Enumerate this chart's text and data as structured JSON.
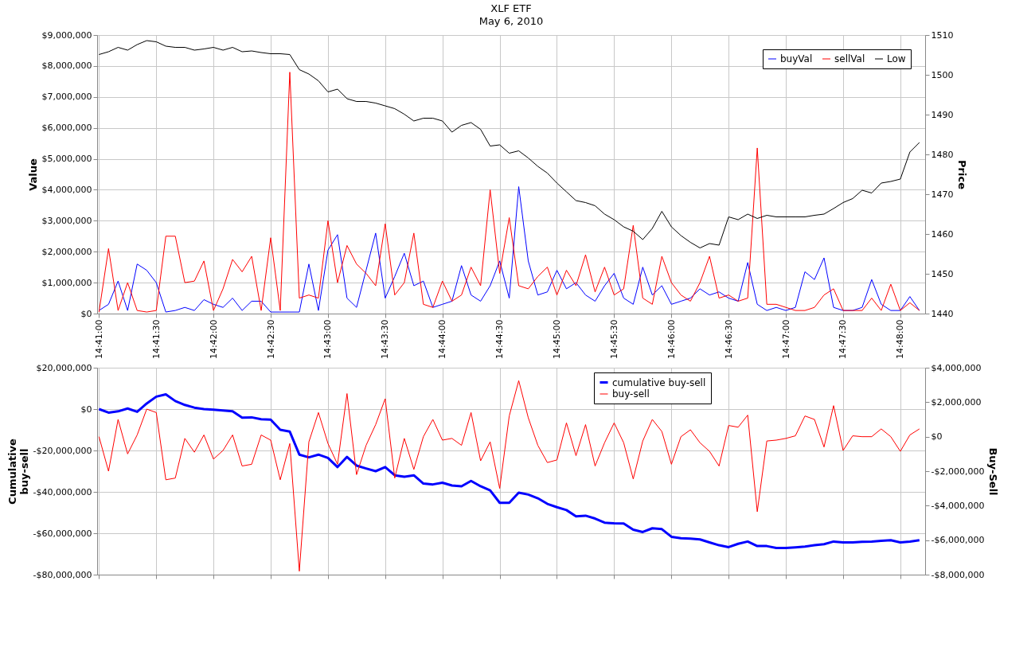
{
  "chart_data": [
    {
      "type": "line",
      "title": "XLF ETF",
      "subtitle": "May 6, 2010",
      "ylabel": "Value",
      "y2label": "Price",
      "legend": "top right",
      "grid": true,
      "x": [
        14.68333,
        14.68472,
        14.68611,
        14.6875,
        14.68889,
        14.69028,
        14.69167,
        14.69306,
        14.69444,
        14.69583,
        14.69722,
        14.69861,
        14.7,
        14.70139,
        14.70278,
        14.70417,
        14.70556,
        14.70694,
        14.70833,
        14.70972,
        14.71111,
        14.7125,
        14.71389,
        14.71528,
        14.71667,
        14.71806,
        14.71944,
        14.72083,
        14.72222,
        14.72361,
        14.725,
        14.72639,
        14.72778,
        14.72917,
        14.73056,
        14.73194,
        14.73333,
        14.73472,
        14.73611,
        14.7375,
        14.73889,
        14.74028,
        14.74167,
        14.74306,
        14.74444,
        14.74583,
        14.74722,
        14.74861,
        14.75,
        14.75139,
        14.75278,
        14.75417,
        14.75556,
        14.75694,
        14.75833,
        14.75972,
        14.76111,
        14.7625,
        14.76389,
        14.76528,
        14.76667,
        14.76806,
        14.76944,
        14.77083,
        14.77222,
        14.77361,
        14.775,
        14.77639,
        14.77778,
        14.77917,
        14.78056,
        14.78194,
        14.78333,
        14.78472,
        14.78611,
        14.7875,
        14.78889,
        14.79028,
        14.79167,
        14.79306,
        14.79444,
        14.79583,
        14.79722,
        14.79861,
        14.8,
        14.80139,
        14.80278
      ],
      "xlim": [
        14.68306,
        14.80361
      ],
      "xticks": [
        {
          "value": 14.68333,
          "label": "14:41:00"
        },
        {
          "value": 14.69167,
          "label": "14:41:30"
        },
        {
          "value": 14.7,
          "label": "14:42:00"
        },
        {
          "value": 14.70833,
          "label": "14:42:30"
        },
        {
          "value": 14.71667,
          "label": "14:43:00"
        },
        {
          "value": 14.725,
          "label": "14:43:30"
        },
        {
          "value": 14.73333,
          "label": "14:44:00"
        },
        {
          "value": 14.74167,
          "label": "14:44:30"
        },
        {
          "value": 14.75,
          "label": "14:45:00"
        },
        {
          "value": 14.75833,
          "label": "14:45:30"
        },
        {
          "value": 14.76667,
          "label": "14:46:00"
        },
        {
          "value": 14.775,
          "label": "14:46:30"
        },
        {
          "value": 14.78333,
          "label": "14:47:00"
        },
        {
          "value": 14.79167,
          "label": "14:47:30"
        },
        {
          "value": 14.8,
          "label": "14:48:00"
        }
      ],
      "ylim": [
        0,
        9000000
      ],
      "yticks": [
        {
          "value": 0,
          "label": "$0"
        },
        {
          "value": 1000000,
          "label": "$1,000,000"
        },
        {
          "value": 2000000,
          "label": "$2,000,000"
        },
        {
          "value": 3000000,
          "label": "$3,000,000"
        },
        {
          "value": 4000000,
          "label": "$4,000,000"
        },
        {
          "value": 5000000,
          "label": "$5,000,000"
        },
        {
          "value": 6000000,
          "label": "$6,000,000"
        },
        {
          "value": 7000000,
          "label": "$7,000,000"
        },
        {
          "value": 8000000,
          "label": "$8,000,000"
        },
        {
          "value": 9000000,
          "label": "$9,000,000"
        }
      ],
      "y2lim": [
        1440,
        1510
      ],
      "y2ticks": [
        1440,
        1450,
        1460,
        1470,
        1480,
        1490,
        1500,
        1510
      ],
      "series": [
        {
          "name": "buyVal",
          "color": "#0000ff",
          "values": [
            100000,
            300000,
            1050000,
            100000,
            1600000,
            1400000,
            1000000,
            50000,
            100000,
            200000,
            100000,
            450000,
            300000,
            200000,
            500000,
            100000,
            400000,
            400000,
            50000,
            50000,
            50000,
            50000,
            1600000,
            100000,
            2050000,
            2550000,
            500000,
            200000,
            1400000,
            2600000,
            500000,
            1200000,
            1950000,
            900000,
            1050000,
            200000,
            300000,
            400000,
            1550000,
            600000,
            400000,
            900000,
            1700000,
            500000,
            4100000,
            1700000,
            600000,
            700000,
            1400000,
            800000,
            1000000,
            600000,
            400000,
            900000,
            1300000,
            500000,
            300000,
            1500000,
            600000,
            900000,
            300000,
            400000,
            500000,
            800000,
            600000,
            700000,
            500000,
            400000,
            1650000,
            300000,
            100000,
            200000,
            100000,
            200000,
            1350000,
            1100000,
            1800000,
            200000,
            100000,
            100000,
            200000,
            1100000,
            300000,
            100000,
            100000,
            550000,
            100000
          ]
        },
        {
          "name": "sellVal",
          "color": "#ff0000",
          "values": [
            50000,
            2100000,
            100000,
            1000000,
            100000,
            50000,
            100000,
            2500000,
            2500000,
            1000000,
            1050000,
            1700000,
            100000,
            800000,
            1750000,
            1350000,
            1850000,
            100000,
            2450000,
            100000,
            7800000,
            500000,
            600000,
            500000,
            3000000,
            1000000,
            2200000,
            1600000,
            1300000,
            900000,
            2900000,
            600000,
            1000000,
            2600000,
            300000,
            200000,
            1050000,
            400000,
            600000,
            1500000,
            900000,
            4000000,
            1300000,
            3100000,
            900000,
            800000,
            1200000,
            1500000,
            600000,
            1400000,
            900000,
            1900000,
            700000,
            1500000,
            600000,
            800000,
            2850000,
            500000,
            300000,
            1850000,
            1000000,
            600000,
            400000,
            1000000,
            1850000,
            500000,
            600000,
            400000,
            500000,
            5350000,
            300000,
            300000,
            200000,
            100000,
            100000,
            200000,
            600000,
            800000,
            100000,
            100000,
            100000,
            500000,
            100000,
            950000,
            100000,
            350000,
            100000
          ]
        },
        {
          "name": "Low",
          "color": "#000000",
          "axis": "y2",
          "values": [
            1505.1,
            1505.8,
            1506.9,
            1506.2,
            1507.6,
            1508.6,
            1508.3,
            1507.2,
            1506.9,
            1506.9,
            1506.2,
            1506.5,
            1506.9,
            1506.2,
            1506.9,
            1505.8,
            1506.0,
            1505.6,
            1505.3,
            1505.3,
            1505.1,
            1501.3,
            1500.2,
            1498.5,
            1495.7,
            1496.4,
            1494.0,
            1493.3,
            1493.3,
            1492.9,
            1492.2,
            1491.5,
            1490.1,
            1488.4,
            1489.1,
            1489.1,
            1488.4,
            1485.6,
            1487.3,
            1488.0,
            1486.3,
            1482.1,
            1482.4,
            1480.3,
            1480.9,
            1479.1,
            1477.0,
            1475.3,
            1472.8,
            1470.6,
            1468.4,
            1467.9,
            1467.1,
            1465.0,
            1463.6,
            1461.8,
            1460.7,
            1458.6,
            1461.4,
            1465.7,
            1461.8,
            1459.6,
            1457.9,
            1456.5,
            1457.6,
            1457.2,
            1464.3,
            1463.6,
            1465.0,
            1463.9,
            1464.7,
            1464.3,
            1464.3,
            1464.3,
            1464.3,
            1464.7,
            1465.0,
            1466.4,
            1467.9,
            1468.9,
            1471.0,
            1470.3,
            1472.8,
            1473.2,
            1473.8,
            1480.6,
            1483.0
          ]
        }
      ]
    },
    {
      "type": "line",
      "ylabel": "Cumulative buy-sell",
      "y2label": "Buy-Sell",
      "legend": "top",
      "grid": true,
      "tick_labels": "y",
      "x": [
        14.68333,
        14.68472,
        14.68611,
        14.6875,
        14.68889,
        14.69028,
        14.69167,
        14.69306,
        14.69444,
        14.69583,
        14.69722,
        14.69861,
        14.7,
        14.70139,
        14.70278,
        14.70417,
        14.70556,
        14.70694,
        14.70833,
        14.70972,
        14.71111,
        14.7125,
        14.71389,
        14.71528,
        14.71667,
        14.71806,
        14.71944,
        14.72083,
        14.72222,
        14.72361,
        14.725,
        14.72639,
        14.72778,
        14.72917,
        14.73056,
        14.73194,
        14.73333,
        14.73472,
        14.73611,
        14.7375,
        14.73889,
        14.74028,
        14.74167,
        14.74306,
        14.74444,
        14.74583,
        14.74722,
        14.74861,
        14.75,
        14.75139,
        14.75278,
        14.75417,
        14.75556,
        14.75694,
        14.75833,
        14.75972,
        14.76111,
        14.7625,
        14.76389,
        14.76528,
        14.76667,
        14.76806,
        14.76944,
        14.77083,
        14.77222,
        14.77361,
        14.775,
        14.77639,
        14.77778,
        14.77917,
        14.78056,
        14.78194,
        14.78333,
        14.78472,
        14.78611,
        14.7875,
        14.78889,
        14.79028,
        14.79167,
        14.79306,
        14.79444,
        14.79583,
        14.79722,
        14.79861,
        14.8,
        14.80139,
        14.80278
      ],
      "xlim": [
        14.68306,
        14.80361
      ],
      "xticks": [
        {
          "value": 14.68333,
          "label": null
        },
        {
          "value": 14.69167,
          "label": null
        },
        {
          "value": 14.7,
          "label": null
        },
        {
          "value": 14.70833,
          "label": null
        },
        {
          "value": 14.71667,
          "label": null
        },
        {
          "value": 14.725,
          "label": null
        },
        {
          "value": 14.73333,
          "label": null
        },
        {
          "value": 14.74167,
          "label": null
        },
        {
          "value": 14.75,
          "label": null
        },
        {
          "value": 14.75833,
          "label": null
        },
        {
          "value": 14.76667,
          "label": null
        },
        {
          "value": 14.775,
          "label": null
        },
        {
          "value": 14.78333,
          "label": null
        },
        {
          "value": 14.79167,
          "label": null
        },
        {
          "value": 14.8,
          "label": null
        }
      ],
      "ylim": [
        -80000000,
        20000000
      ],
      "yticks": [
        {
          "value": -80000000,
          "label": "-$80,000,000"
        },
        {
          "value": -60000000,
          "label": "-$60,000,000"
        },
        {
          "value": -40000000,
          "label": "-$40,000,000"
        },
        {
          "value": -20000000,
          "label": "-$20,000,000"
        },
        {
          "value": 0,
          "label": "$0"
        },
        {
          "value": 20000000,
          "label": "$20,000,000"
        }
      ],
      "y2lim": [
        -8000000,
        4000000
      ],
      "y2ticks": [
        {
          "value": -8000000,
          "label": "-$8,000,000"
        },
        {
          "value": -6000000,
          "label": "-$6,000,000"
        },
        {
          "value": -4000000,
          "label": "-$4,000,000"
        },
        {
          "value": -2000000,
          "label": "-$2,000,000"
        },
        {
          "value": 0,
          "label": "$0"
        },
        {
          "value": 2000000,
          "label": "$2,000,000"
        },
        {
          "value": 4000000,
          "label": "$4,000,000"
        }
      ],
      "series": [
        {
          "name": "cumulative buy-sell",
          "color": "#0000ff",
          "values": [
            0,
            -1700000,
            -1100000,
            300000,
            -1300000,
            2700000,
            6000000,
            7100000,
            3900000,
            2000000,
            700000,
            0,
            -300000,
            -700000,
            -1100000,
            -4100000,
            -4000000,
            -4900000,
            -5100000,
            -10000000,
            -10900000,
            -22000000,
            -23300000,
            -22000000,
            -23600000,
            -28000000,
            -23100000,
            -27300000,
            -28700000,
            -30000000,
            -28000000,
            -32000000,
            -32700000,
            -32000000,
            -36000000,
            -36400000,
            -35600000,
            -36900000,
            -37300000,
            -34700000,
            -37300000,
            -39300000,
            -45300000,
            -45300000,
            -40400000,
            -41300000,
            -43100000,
            -45800000,
            -47400000,
            -48800000,
            -51800000,
            -51500000,
            -52900000,
            -54900000,
            -55200000,
            -55300000,
            -58300000,
            -59400000,
            -57600000,
            -58000000,
            -61700000,
            -62400000,
            -62600000,
            -63000000,
            -64400000,
            -65800000,
            -66700000,
            -65100000,
            -64000000,
            -66200000,
            -66200000,
            -67100000,
            -67100000,
            -66800000,
            -66400000,
            -65800000,
            -65300000,
            -64000000,
            -64400000,
            -64400000,
            -64100000,
            -64000000,
            -63700000,
            -63400000,
            -64400000,
            -64000000,
            -63400000
          ]
        },
        {
          "name": "buy-sell",
          "color": "#ff0000",
          "axis": "y2",
          "values": [
            0,
            -2000000,
            1000000,
            -1000000,
            100000,
            1600000,
            1400000,
            -2500000,
            -2400000,
            -100000,
            -900000,
            100000,
            -1300000,
            -800000,
            100000,
            -1700000,
            -1600000,
            100000,
            -200000,
            -2500000,
            -400000,
            -7800000,
            -300000,
            1400000,
            -400000,
            -1600000,
            2500000,
            -2200000,
            -500000,
            700000,
            2200000,
            -2400000,
            -100000,
            -1900000,
            0,
            1000000,
            -200000,
            -100000,
            -500000,
            1400000,
            -1400000,
            -300000,
            -3000000,
            1200000,
            3250000,
            1100000,
            -500000,
            -1500000,
            -1350000,
            800000,
            -1100000,
            700000,
            -1700000,
            -350000,
            800000,
            -350000,
            -2450000,
            -250000,
            1000000,
            300000,
            -1600000,
            0,
            400000,
            -350000,
            -850000,
            -1700000,
            650000,
            550000,
            1250000,
            -4350000,
            -250000,
            -200000,
            -100000,
            50000,
            1200000,
            1000000,
            -600000,
            1800000,
            -800000,
            50000,
            0,
            0,
            450000,
            0,
            -850000,
            100000,
            450000
          ]
        }
      ]
    }
  ]
}
